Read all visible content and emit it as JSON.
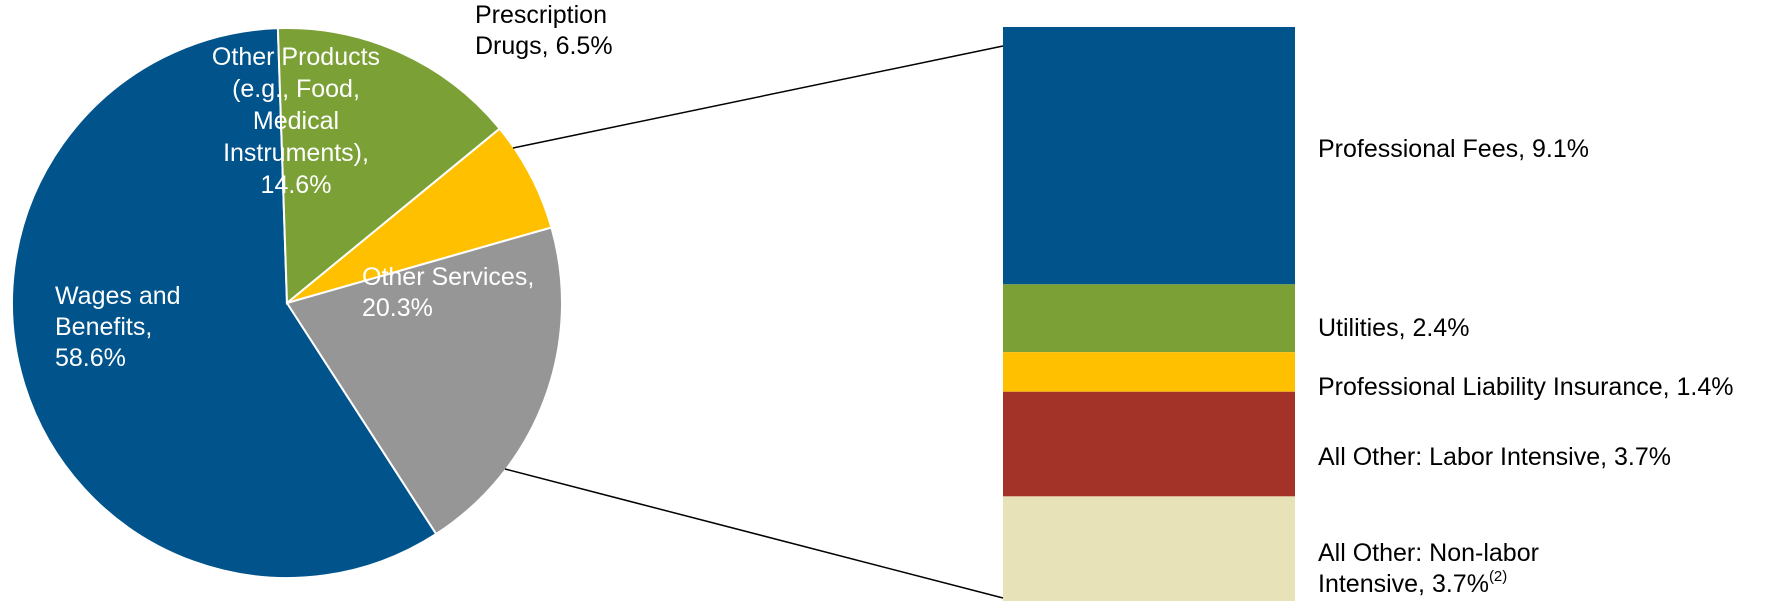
{
  "chart_data": [
    {
      "type": "pie",
      "slices": [
        {
          "name": "Wages and Benefits",
          "value": 58.6,
          "color": "#00538B",
          "label_lines": [
            "Wages and",
            "Benefits,",
            "58.6%"
          ],
          "label_color": "#FFFFFF"
        },
        {
          "name": "Other Products (e.g., Food, Medical Instruments)",
          "value": 14.6,
          "color": "#7BA035",
          "label_lines": [
            "Other Products",
            "(e.g., Food,",
            "Medical",
            "Instruments),",
            "14.6%"
          ],
          "label_color": "#FFFFFF"
        },
        {
          "name": "Prescription Drugs",
          "value": 6.5,
          "color": "#FFC000",
          "label_lines": [
            "Prescription",
            "Drugs, 6.5%"
          ],
          "label_color": "#000000"
        },
        {
          "name": "Other Services",
          "value": 20.3,
          "color": "#969696",
          "label_lines": [
            "Other Services,",
            "20.3%"
          ],
          "label_color": "#FFFFFF"
        }
      ]
    },
    {
      "type": "bar",
      "stacked": true,
      "breakdown_of": "Other Services",
      "segments": [
        {
          "name": "Professional Fees",
          "value": 9.1,
          "color": "#00538B",
          "label": "Professional Fees, 9.1%"
        },
        {
          "name": "Utilities",
          "value": 2.4,
          "color": "#7BA035",
          "label": "Utilities, 2.4%"
        },
        {
          "name": "Professional Liability Insurance",
          "value": 1.4,
          "color": "#FFC000",
          "label": "Professional Liability Insurance, 1.4%"
        },
        {
          "name": "All Other: Labor Intensive",
          "value": 3.7,
          "color": "#A33228",
          "label": "All Other: Labor Intensive, 3.7%"
        },
        {
          "name": "All Other: Non-labor Intensive",
          "value": 3.7,
          "color": "#E8E2B8",
          "label_lines": [
            "All Other: Non-labor",
            "Intensive, 3.7%"
          ],
          "footnote": "(2)"
        }
      ]
    }
  ]
}
